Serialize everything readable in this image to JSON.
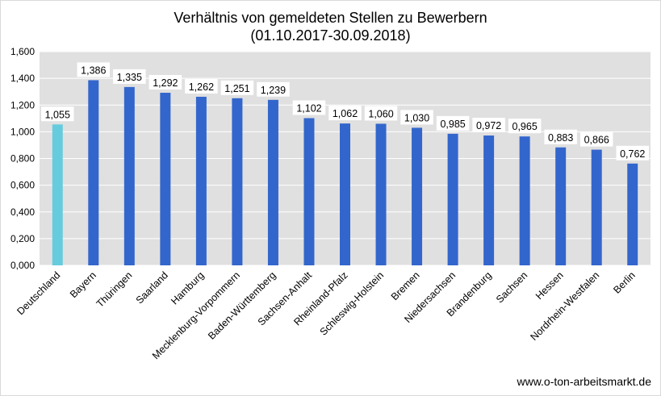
{
  "chart_data": {
    "type": "bar",
    "title": "Verhältnis von gemeldeten Stellen zu Bewerbern",
    "subtitle": "(01.10.2017-30.09.2018)",
    "xlabel": "",
    "ylabel": "",
    "ylim": [
      0,
      1.6
    ],
    "yticks": [
      "0,000",
      "0,200",
      "0,400",
      "0,600",
      "0,800",
      "1,000",
      "1,200",
      "1,400",
      "1,600"
    ],
    "grid": true,
    "categories": [
      "Deutschland",
      "Bayern",
      "Thüringen",
      "Saarland",
      "Hamburg",
      "Mecklenburg-Vorpommern",
      "Baden-Württemberg",
      "Sachsen-Anhalt",
      "Rheinland-Pfalz",
      "Schleswig-Holstein",
      "Bremen",
      "Niedersachsen",
      "Brandenburg",
      "Sachsen",
      "Hessen",
      "Nordrhein-Westfalen",
      "Berlin"
    ],
    "values": [
      1.055,
      1.386,
      1.335,
      1.292,
      1.262,
      1.251,
      1.239,
      1.102,
      1.062,
      1.06,
      1.03,
      0.985,
      0.972,
      0.965,
      0.883,
      0.866,
      0.762
    ],
    "value_labels": [
      "1,055",
      "1,386",
      "1,335",
      "1,292",
      "1,262",
      "1,251",
      "1,239",
      "1,102",
      "1,062",
      "1,060",
      "1,030",
      "0,985",
      "0,972",
      "0,965",
      "0,883",
      "0,866",
      "0,762"
    ],
    "colors": {
      "highlight": "#66ccdd",
      "bar": "#3366cc",
      "plot_background": "#e0e0e0",
      "grid": "#ffffff"
    },
    "highlight_index": 0
  },
  "footer": {
    "source": "www.o-ton-arbeitsmarkt.de"
  }
}
